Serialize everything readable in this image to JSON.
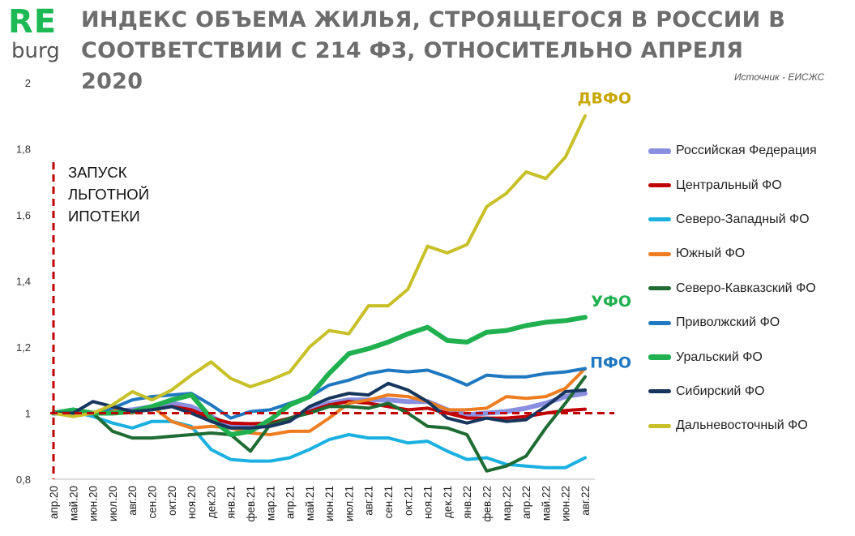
{
  "header": {
    "logo_top": "RE",
    "logo_bottom": "burg",
    "title": "ИНДЕКС ОБЪЕМА ЖИЛЬЯ, СТРОЯЩЕГОСЯ В РОССИИ В СООТВЕТСТВИИ С 214 ФЗ, ОТНОСИТЕЛЬНО АПРЕЛЯ 2020",
    "source": "Источник - ЕИСЖС"
  },
  "colors": {
    "logo_green": "#1db954",
    "reference_line": "#c00000"
  },
  "chart_data": {
    "type": "line",
    "categories": [
      "апр.20",
      "май.20",
      "июн.20",
      "июл.20",
      "авг.20",
      "сен.20",
      "окт.20",
      "ноя.20",
      "дек.20",
      "янв.21",
      "фев.21",
      "мар.21",
      "апр.21",
      "май.21",
      "июн.21",
      "июл.21",
      "авг.21",
      "сен.21",
      "окт.21",
      "ноя.21",
      "дек.21",
      "янв.22",
      "фев.22",
      "мар.22",
      "апр.22",
      "май.22",
      "июн.22",
      "авг.22"
    ],
    "ylim": [
      0.8,
      2.0
    ],
    "yticks": [
      "0,8",
      "1",
      "1,2",
      "1,4",
      "1,6",
      "1,8",
      "2"
    ],
    "ytick_values": [
      0.8,
      1.0,
      1.2,
      1.4,
      1.6,
      1.8,
      2.0
    ],
    "reference_value": 1.0,
    "annotation_text": [
      "ЗАПУСК",
      "ЛЬГОТНОЙ",
      "ИПОТЕКИ"
    ],
    "grid": false,
    "legend_position": "right",
    "series": [
      {
        "name": "Российская Федерация",
        "color": "#8a8fe0",
        "width": 6,
        "values": [
          1.0,
          1.0,
          1.0,
          1.005,
          1.01,
          1.02,
          1.03,
          1.02,
          0.99,
          0.96,
          0.955,
          0.965,
          0.98,
          1.01,
          1.03,
          1.04,
          1.04,
          1.04,
          1.035,
          1.035,
          1.01,
          0.995,
          1.0,
          1.005,
          1.015,
          1.03,
          1.05,
          1.06
        ]
      },
      {
        "name": "Центральный ФО",
        "color": "#c00000",
        "width": 4,
        "values": [
          1.0,
          1.0,
          1.0,
          1.005,
          1.005,
          1.01,
          1.02,
          1.01,
          0.985,
          0.97,
          0.968,
          0.97,
          0.985,
          1.005,
          1.025,
          1.035,
          1.03,
          1.02,
          1.01,
          1.015,
          1.0,
          0.985,
          0.985,
          0.985,
          0.99,
          1.0,
          1.008,
          1.012
        ]
      },
      {
        "name": "Северо-Западный ФО",
        "color": "#1ab0e0",
        "width": 4,
        "values": [
          1.0,
          1.005,
          0.99,
          0.97,
          0.955,
          0.975,
          0.975,
          0.96,
          0.89,
          0.86,
          0.855,
          0.855,
          0.865,
          0.89,
          0.92,
          0.935,
          0.925,
          0.925,
          0.91,
          0.915,
          0.885,
          0.86,
          0.865,
          0.845,
          0.84,
          0.835,
          0.835,
          0.865
        ]
      },
      {
        "name": "Южный ФО",
        "color": "#ee7d22",
        "width": 4,
        "values": [
          1.0,
          0.995,
          1.0,
          1.01,
          1.0,
          1.02,
          0.975,
          0.955,
          0.96,
          0.955,
          0.94,
          0.935,
          0.945,
          0.945,
          0.985,
          1.03,
          1.04,
          1.055,
          1.05,
          1.035,
          1.01,
          1.01,
          1.015,
          1.05,
          1.045,
          1.05,
          1.075,
          1.135
        ]
      },
      {
        "name": "Северо-Кавказский ФО",
        "color": "#1e6b33",
        "width": 4,
        "values": [
          1.0,
          1.01,
          1.0,
          0.945,
          0.925,
          0.925,
          0.93,
          0.935,
          0.94,
          0.935,
          0.885,
          0.965,
          0.985,
          1.0,
          1.02,
          1.02,
          1.015,
          1.03,
          1.0,
          0.96,
          0.955,
          0.935,
          0.825,
          0.84,
          0.87,
          0.955,
          1.03,
          1.11
        ]
      },
      {
        "name": "Приволжский ФО",
        "color": "#1f78c0",
        "width": 4,
        "values": [
          1.0,
          1.005,
          1.0,
          1.015,
          1.04,
          1.05,
          1.055,
          1.06,
          1.025,
          0.985,
          1.005,
          1.01,
          1.03,
          1.05,
          1.085,
          1.1,
          1.12,
          1.13,
          1.125,
          1.13,
          1.11,
          1.085,
          1.115,
          1.11,
          1.11,
          1.12,
          1.125,
          1.135
        ]
      },
      {
        "name": "Уральский ФО",
        "color": "#20b050",
        "width": 6,
        "values": [
          1.0,
          1.01,
          1.0,
          1.0,
          1.005,
          1.02,
          1.04,
          1.055,
          0.985,
          0.935,
          0.945,
          0.98,
          1.025,
          1.05,
          1.12,
          1.18,
          1.195,
          1.215,
          1.24,
          1.26,
          1.22,
          1.215,
          1.245,
          1.25,
          1.265,
          1.275,
          1.28,
          1.29
        ]
      },
      {
        "name": "Сибирский ФО",
        "color": "#17365d",
        "width": 4,
        "values": [
          1.0,
          1.0,
          1.035,
          1.02,
          1.005,
          1.01,
          1.02,
          1.0,
          0.975,
          0.955,
          0.955,
          0.96,
          0.975,
          1.02,
          1.045,
          1.06,
          1.055,
          1.09,
          1.07,
          1.035,
          0.985,
          0.97,
          0.985,
          0.975,
          0.98,
          1.02,
          1.065,
          1.07
        ]
      },
      {
        "name": "Дальневосточный ФО",
        "color": "#c7c028",
        "width": 4,
        "values": [
          1.0,
          0.99,
          1.0,
          1.025,
          1.065,
          1.04,
          1.07,
          1.115,
          1.155,
          1.105,
          1.08,
          1.1,
          1.125,
          1.2,
          1.25,
          1.24,
          1.325,
          1.325,
          1.375,
          1.505,
          1.485,
          1.51,
          1.625,
          1.665,
          1.73,
          1.71,
          1.775,
          1.9
        ]
      }
    ],
    "end_labels": [
      {
        "text": "ДВФО",
        "color": "#c7a800",
        "value": 1.955
      },
      {
        "text": "УФО",
        "color": "#20b050",
        "value": 1.34
      },
      {
        "text": "ПФО",
        "color": "#1f78c0",
        "value": 1.155
      }
    ]
  }
}
